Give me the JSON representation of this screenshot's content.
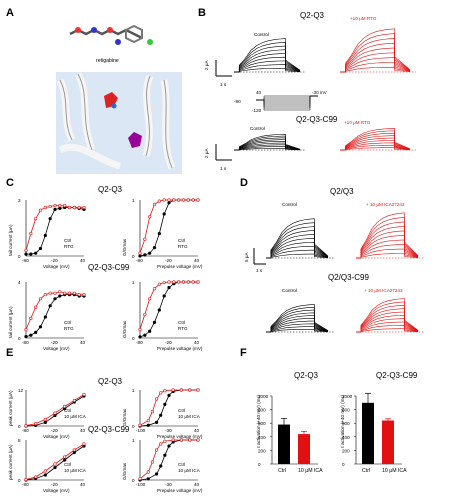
{
  "panels": {
    "A": {
      "label": "A",
      "molecule_name": "retigabine"
    },
    "B": {
      "label": "B",
      "top_title": "Q2-Q3",
      "top_control": "Control",
      "top_drug": "+10 μM RTG",
      "bottom_title": "Q2-Q3-C99",
      "bottom_control": "Control",
      "bottom_drug": "+10 μM RTG",
      "scale_top_y": "2 μA",
      "scale_top_x": "1 s",
      "scale_bottom_y": "2 μA",
      "scale_bottom_x": "1 s",
      "protocol": {
        "v1": "40",
        "v0": "-80",
        "v_end": "-120",
        "v_hold": "-30 mV"
      }
    },
    "C": {
      "label": "C",
      "title_top": "Q2-Q3",
      "title_bottom": "Q2-Q3-C99"
    },
    "D": {
      "label": "D",
      "top_title": "Q2/Q3",
      "top_control": "Control",
      "top_drug": "+ 10 μM ICA27243",
      "bottom_title": "Q2/Q3-C99",
      "bottom_control": "Control",
      "bottom_drug": "+ 10 μM ICA27243",
      "scale_y": "5 μA",
      "scale_x": "1 s"
    },
    "E": {
      "label": "E",
      "title_top": "Q2-Q3",
      "title_bottom": "Q2-Q3-C99"
    },
    "F": {
      "label": "F",
      "left_title": "Q2-Q3",
      "right_title": "Q2-Q3-C99",
      "ylabel": "τ activation (+40 mV) (ms)",
      "cat_ctrl": "Ctrl",
      "cat_drug": "10 μM ICA"
    }
  },
  "colors": {
    "control": "#000000",
    "drug": "#e11111"
  },
  "chart_data": [
    {
      "type": "scatter",
      "panel": "C",
      "title": "Q2-Q3",
      "xlabel": "Voltage (mV)",
      "ylabel": "tail current (μA)",
      "xlim": [
        -80,
        40
      ],
      "ylim": [
        0,
        3
      ],
      "series": [
        {
          "name": "Ctrl",
          "x": [
            -80,
            -70,
            -60,
            -50,
            -40,
            -30,
            -20,
            -10,
            0,
            10,
            20,
            30,
            40
          ],
          "values": [
            0.1,
            0.1,
            0.15,
            0.4,
            1.1,
            2.0,
            2.5,
            2.55,
            2.6,
            2.6,
            2.6,
            2.55,
            2.5
          ]
        },
        {
          "name": "RTG",
          "x": [
            -80,
            -70,
            -60,
            -50,
            -40,
            -30,
            -20,
            -10,
            0,
            10,
            20,
            30,
            40
          ],
          "values": [
            0.3,
            1.2,
            2.0,
            2.45,
            2.6,
            2.65,
            2.7,
            2.7,
            2.7,
            2.6,
            2.6,
            2.6,
            2.6
          ]
        }
      ]
    },
    {
      "type": "scatter",
      "panel": "C",
      "xlabel": "Prepulse voltage (mV)",
      "ylabel": "G/Gmax",
      "xlim": [
        -80,
        40
      ],
      "ylim": [
        0,
        1
      ],
      "series": [
        {
          "name": "Ctrl",
          "x": [
            -80,
            -70,
            -60,
            -50,
            -40,
            -30,
            -20,
            -10,
            0,
            10,
            20,
            30,
            40
          ],
          "values": [
            0,
            0.02,
            0.05,
            0.15,
            0.4,
            0.75,
            0.95,
            1,
            1,
            1,
            1,
            1,
            1
          ]
        },
        {
          "name": "RTG",
          "x": [
            -80,
            -70,
            -60,
            -50,
            -40,
            -30,
            -20,
            -10,
            0,
            10,
            20,
            30,
            40
          ],
          "values": [
            0.05,
            0.3,
            0.7,
            0.92,
            0.98,
            1,
            1,
            1,
            1,
            1,
            1,
            1,
            1
          ]
        }
      ]
    },
    {
      "type": "scatter",
      "panel": "C",
      "title": "Q2-Q3-C99",
      "xlabel": "Voltage (mV)",
      "ylabel": "tail current (μA)",
      "xlim": [
        -80,
        40
      ],
      "ylim": [
        0,
        4
      ],
      "series": [
        {
          "name": "Ctrl",
          "x": [
            -80,
            -70,
            -60,
            -50,
            -40,
            -30,
            -20,
            -10,
            0,
            10,
            20,
            30,
            40
          ],
          "values": [
            0.1,
            0.2,
            0.4,
            0.8,
            1.5,
            2.3,
            2.8,
            3.0,
            3.1,
            3.1,
            3.1,
            3.0,
            3.0
          ]
        },
        {
          "name": "RTG",
          "x": [
            -80,
            -70,
            -60,
            -50,
            -40,
            -30,
            -20,
            -10,
            0,
            10,
            20,
            30,
            40
          ],
          "values": [
            0.6,
            1.4,
            2.2,
            2.8,
            3.1,
            3.2,
            3.2,
            3.3,
            3.2,
            3.2,
            3.2,
            3.1,
            3.1
          ]
        }
      ]
    },
    {
      "type": "scatter",
      "panel": "C",
      "xlabel": "Prepulse voltage (mV)",
      "ylabel": "G/Gmax",
      "xlim": [
        -80,
        40
      ],
      "ylim": [
        0,
        1
      ],
      "series": [
        {
          "name": "Ctrl",
          "x": [
            -80,
            -70,
            -60,
            -50,
            -40,
            -30,
            -20,
            -10,
            0,
            10,
            20,
            30,
            40
          ],
          "values": [
            0.02,
            0.05,
            0.12,
            0.28,
            0.5,
            0.75,
            0.9,
            0.97,
            1,
            1,
            1,
            1,
            1
          ]
        },
        {
          "name": "RTG",
          "x": [
            -80,
            -70,
            -60,
            -50,
            -40,
            -30,
            -20,
            -10,
            0,
            10,
            20,
            30,
            40
          ],
          "values": [
            0.15,
            0.42,
            0.7,
            0.88,
            0.96,
            0.99,
            1,
            1,
            1,
            1,
            1,
            1,
            1
          ]
        }
      ]
    },
    {
      "type": "scatter",
      "panel": "E",
      "title": "Q2-Q3",
      "xlabel": "Voltage (mV)",
      "ylabel": "peak current (μA)",
      "xlim": [
        -80,
        40
      ],
      "ylim": [
        0,
        12
      ],
      "series": [
        {
          "name": "Ctrl",
          "x": [
            -80,
            -60,
            -40,
            -20,
            0,
            20,
            40
          ],
          "values": [
            0,
            0.2,
            1.2,
            3.5,
            5.8,
            8.0,
            10.0
          ]
        },
        {
          "name": "10 μM ICA",
          "x": [
            -80,
            -60,
            -40,
            -20,
            0,
            20,
            40
          ],
          "values": [
            0.1,
            0.8,
            2.2,
            4.3,
            6.5,
            8.5,
            10.5
          ]
        }
      ]
    },
    {
      "type": "scatter",
      "panel": "E",
      "xlabel": "Prepulse voltage (mV)",
      "ylabel": "G/Gmax",
      "xlim": [
        -100,
        40
      ],
      "ylim": [
        0,
        1
      ],
      "series": [
        {
          "name": "Ctrl",
          "x": [
            -100,
            -80,
            -60,
            -50,
            -40,
            -30,
            -20,
            0,
            20,
            40
          ],
          "values": [
            0,
            0.02,
            0.1,
            0.3,
            0.6,
            0.85,
            0.96,
            1,
            1,
            1
          ]
        },
        {
          "name": "10 μM ICA",
          "x": [
            -100,
            -80,
            -70,
            -60,
            -50,
            -40,
            -20,
            0,
            20,
            40
          ],
          "values": [
            0.02,
            0.15,
            0.4,
            0.75,
            0.92,
            0.98,
            1,
            1,
            1,
            1
          ]
        }
      ]
    },
    {
      "type": "scatter",
      "panel": "E",
      "title": "Q2-Q3-C99",
      "xlabel": "Voltage (mV)",
      "ylabel": "peak current (μA)",
      "xlim": [
        -80,
        40
      ],
      "ylim": [
        0,
        8
      ],
      "series": [
        {
          "name": "Ctrl",
          "x": [
            -80,
            -60,
            -40,
            -20,
            0,
            20,
            40
          ],
          "values": [
            0,
            0.3,
            1.0,
            2.5,
            4.0,
            5.5,
            6.8
          ]
        },
        {
          "name": "10 μM ICA",
          "x": [
            -80,
            -60,
            -40,
            -20,
            0,
            20,
            40
          ],
          "values": [
            0.1,
            0.6,
            1.8,
            3.2,
            4.6,
            6.0,
            7.2
          ]
        }
      ]
    },
    {
      "type": "scatter",
      "panel": "E",
      "xlabel": "Prepulse voltage (mV)",
      "ylabel": "G/Gmax",
      "xlim": [
        -100,
        40
      ],
      "ylim": [
        0,
        1
      ],
      "series": [
        {
          "name": "Ctrl",
          "x": [
            -100,
            -80,
            -60,
            -50,
            -40,
            -30,
            -20,
            0,
            20,
            40
          ],
          "values": [
            0,
            0.03,
            0.15,
            0.35,
            0.62,
            0.85,
            0.95,
            1,
            1,
            1
          ]
        },
        {
          "name": "10 μM ICA",
          "x": [
            -100,
            -80,
            -70,
            -60,
            -50,
            -40,
            -20,
            0,
            20,
            40
          ],
          "values": [
            0.03,
            0.2,
            0.45,
            0.75,
            0.9,
            0.97,
            1,
            1,
            1,
            1
          ]
        }
      ]
    },
    {
      "type": "bar",
      "panel": "F",
      "title": "Q2-Q3",
      "categories": [
        "Ctrl",
        "10 μM ICA"
      ],
      "values": [
        580,
        440
      ],
      "errors": [
        90,
        40
      ],
      "ylim": [
        0,
        1000
      ],
      "yticks": [
        0,
        200,
        400,
        600,
        800,
        1000
      ]
    },
    {
      "type": "bar",
      "panel": "F",
      "title": "Q2-Q3-C99",
      "categories": [
        "Ctrl",
        "10 μM ICA"
      ],
      "values": [
        900,
        640
      ],
      "errors": [
        140,
        25
      ],
      "ylim": [
        0,
        1000
      ],
      "yticks": [
        0,
        200,
        400,
        600,
        800,
        1000
      ]
    }
  ]
}
